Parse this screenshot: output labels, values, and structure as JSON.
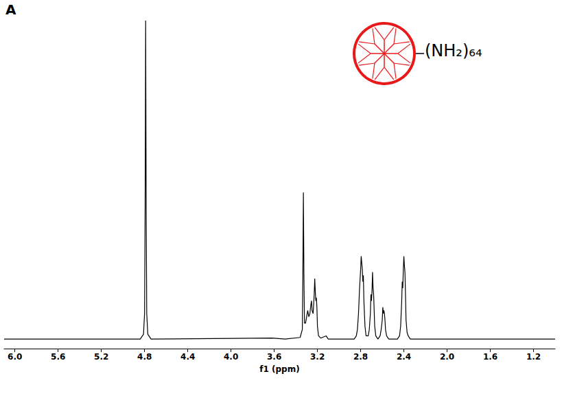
{
  "chart_data": {
    "type": "line",
    "panel_label": "A",
    "annotation": "(NH₂)₆₄",
    "xlabel": "f1 (ppm)",
    "xlim": [
      6.1,
      1.0
    ],
    "xticks": [
      {
        "value": 6,
        "label": "6.0"
      },
      5.6,
      5.2,
      4.8,
      4.4,
      {
        "value": 4,
        "label": "4.0"
      },
      3.6,
      3.2,
      2.8,
      2.4,
      {
        "value": 2,
        "label": "2.0"
      },
      1.6,
      1.2
    ],
    "ylim": [
      -3,
      100
    ],
    "tick_labels": "x",
    "grid": false,
    "color": "#000000",
    "x": [
      6.1,
      4.84,
      4.81,
      4.8,
      4.795,
      4.79,
      4.785,
      4.78,
      4.77,
      4.74,
      3.62,
      3.5,
      3.36,
      3.34,
      3.335,
      3.33,
      3.325,
      3.32,
      3.31,
      3.3,
      3.29,
      3.28,
      3.27,
      3.26,
      3.255,
      3.25,
      3.24,
      3.23,
      3.225,
      3.22,
      3.215,
      3.21,
      3.205,
      3.2,
      3.19,
      3.17,
      3.12,
      3.1,
      2.86,
      2.84,
      2.83,
      2.82,
      2.81,
      2.8,
      2.795,
      2.79,
      2.785,
      2.78,
      2.775,
      2.77,
      2.76,
      2.75,
      2.73,
      2.72,
      2.71,
      2.705,
      2.7,
      2.695,
      2.69,
      2.685,
      2.68,
      2.675,
      2.67,
      2.66,
      2.64,
      2.62,
      2.61,
      2.6,
      2.595,
      2.59,
      2.585,
      2.58,
      2.575,
      2.57,
      2.56,
      2.54,
      2.46,
      2.44,
      2.43,
      2.42,
      2.415,
      2.41,
      2.405,
      2.4,
      2.395,
      2.39,
      2.385,
      2.38,
      2.37,
      2.36,
      2.34,
      1.0
    ],
    "values": [
      0,
      0,
      1.5,
      8,
      40,
      100,
      40,
      8,
      1.5,
      0,
      0.3,
      0,
      0.5,
      3,
      20,
      46,
      20,
      5,
      5,
      7,
      9,
      7,
      8,
      11,
      12,
      9,
      8,
      14,
      19,
      15,
      12,
      13,
      10,
      4,
      1,
      0.3,
      1,
      0,
      0,
      1,
      3,
      8,
      16,
      22,
      26,
      24,
      22,
      18,
      20,
      12,
      4,
      1,
      1,
      3,
      8,
      14,
      12,
      15,
      21,
      16,
      14,
      9,
      4,
      1,
      0,
      1,
      3,
      6,
      10,
      8,
      9,
      8,
      6,
      3,
      1,
      0,
      0,
      1,
      4,
      12,
      18,
      16,
      22,
      26,
      23,
      21,
      14,
      6,
      2,
      1,
      0,
      0
    ]
  }
}
